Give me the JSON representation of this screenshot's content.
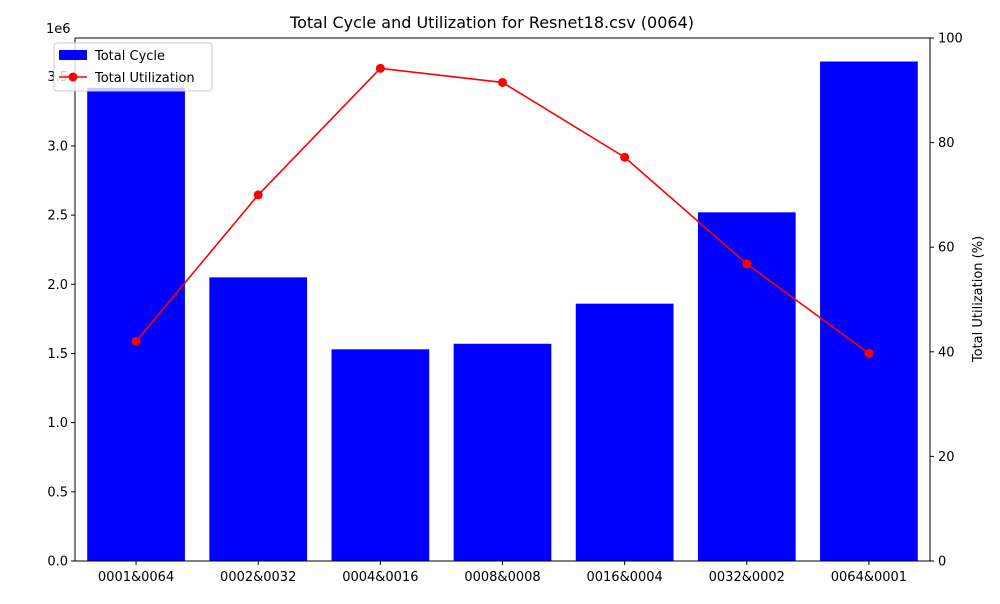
{
  "chart_data": {
    "type": "bar",
    "title": "Total Cycle and Utilization for Resnet18.csv (0064)",
    "xlabel": "",
    "ylabel": "",
    "y2label": "Total Utilization (%)",
    "y_offset_label": "1e6",
    "categories": [
      "0001&0064",
      "0002&0032",
      "0004&0016",
      "0008&0008",
      "0016&0004",
      "0032&0002",
      "0064&0001"
    ],
    "ylim": [
      0,
      3.78
    ],
    "yticks": [
      0.0,
      0.5,
      1.0,
      1.5,
      2.0,
      2.5,
      3.0,
      3.5
    ],
    "ytick_labels": [
      "0.0",
      "0.5",
      "1.0",
      "1.5",
      "2.0",
      "2.5",
      "3.0",
      "3.5"
    ],
    "y2lim": [
      0,
      100
    ],
    "y2ticks": [
      0,
      20,
      40,
      60,
      80,
      100
    ],
    "y2tick_labels": [
      "0",
      "20",
      "40",
      "60",
      "80",
      "100"
    ],
    "series": [
      {
        "name": "Total Cycle",
        "kind": "bar",
        "axis": "left",
        "color": "#0000ff",
        "values": [
          3.42,
          2.05,
          1.53,
          1.57,
          1.86,
          2.52,
          3.61
        ]
      },
      {
        "name": "Total Utilization",
        "kind": "line",
        "axis": "right",
        "color": "#ff0000",
        "marker": "circle",
        "values": [
          42.0,
          70.0,
          94.2,
          91.5,
          77.2,
          56.8,
          39.7
        ]
      }
    ],
    "legend": {
      "position": "top-left",
      "entries": [
        "Total Cycle",
        "Total Utilization"
      ]
    },
    "grid": false
  }
}
